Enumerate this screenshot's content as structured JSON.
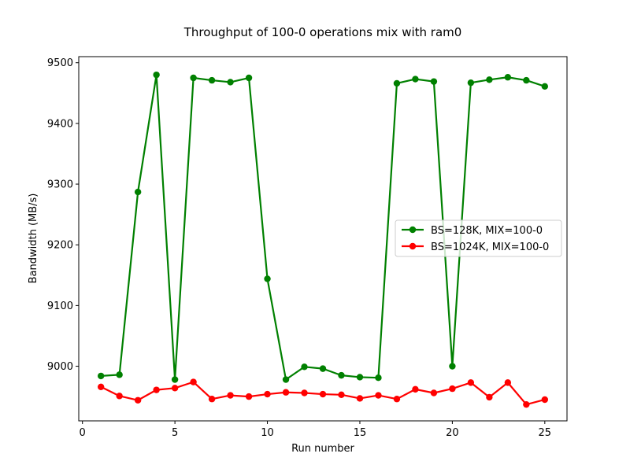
{
  "chart_data": {
    "type": "line",
    "title": "Throughput of 100-0 operations mix with ram0",
    "xlabel": "Run number",
    "ylabel": "Bandwidth (MB/s)",
    "xlim": [
      -0.2,
      26.2
    ],
    "ylim": [
      8910,
      9510
    ],
    "xticks": [
      0,
      5,
      10,
      15,
      20,
      25
    ],
    "yticks": [
      9000,
      9100,
      9200,
      9300,
      9400,
      9500
    ],
    "grid": false,
    "legend_position": "center-right",
    "x": [
      1,
      2,
      3,
      4,
      5,
      6,
      7,
      8,
      9,
      10,
      11,
      12,
      13,
      14,
      15,
      16,
      17,
      18,
      19,
      20,
      21,
      22,
      23,
      24,
      25
    ],
    "series": [
      {
        "name": "BS=128K, MIX=100-0",
        "color": "#008000",
        "values": [
          8984,
          8986,
          9287,
          9480,
          8978,
          9475,
          9471,
          9468,
          9475,
          9144,
          8978,
          8999,
          8996,
          8985,
          8982,
          8981,
          9466,
          9473,
          9469,
          9000,
          9467,
          9472,
          9476,
          9471,
          9461
        ]
      },
      {
        "name": "BS=1024K, MIX=100-0",
        "color": "#ff0000",
        "values": [
          8966,
          8951,
          8944,
          8961,
          8964,
          8974,
          8946,
          8952,
          8950,
          8954,
          8957,
          8956,
          8954,
          8953,
          8947,
          8952,
          8946,
          8962,
          8956,
          8963,
          8973,
          8949,
          8973,
          8937,
          8945
        ]
      }
    ]
  }
}
